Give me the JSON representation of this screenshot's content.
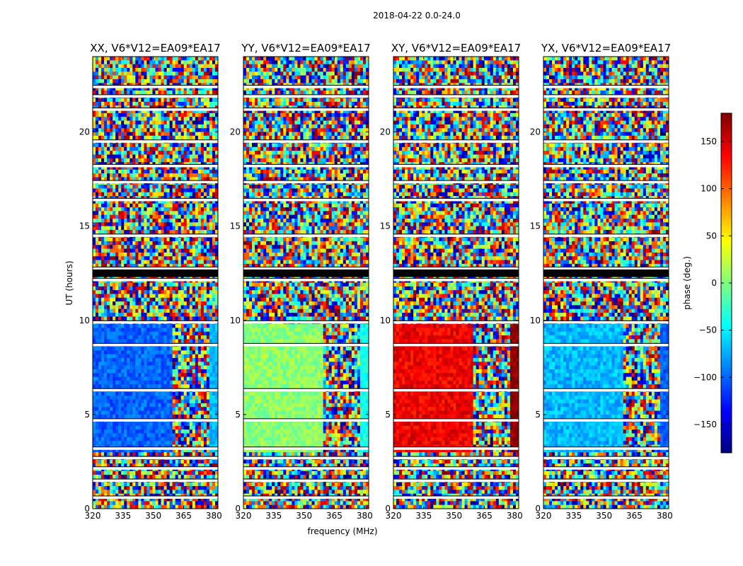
{
  "figure": {
    "suptitle": "2018-04-22 0.0-24.0",
    "xlabel": "frequency (MHz)",
    "ylabel": "UT (hours)"
  },
  "chart_data": {
    "type": "heatmap",
    "xlim": [
      320,
      382
    ],
    "ylim": [
      0,
      24
    ],
    "xticks": [
      320,
      335,
      350,
      365,
      380
    ],
    "yticks": [
      0,
      5,
      10,
      15,
      20
    ],
    "panels": [
      {
        "title": "XX, V6*V12=EA09*EA17",
        "phase_deg": -100,
        "phase_alt_deg": -70
      },
      {
        "title": "YY, V6*V12=EA09*EA17",
        "phase_deg": 5,
        "phase_alt_deg": -40
      },
      {
        "title": "XY, V6*V12=EA09*EA17",
        "phase_deg": 140,
        "phase_alt_deg": 175
      },
      {
        "title": "YX, V6*V12=EA09*EA17",
        "phase_deg": -70,
        "phase_alt_deg": -100
      }
    ],
    "colorbar": {
      "label": "phase (deg.)",
      "range": [
        -180,
        180
      ],
      "ticks": [
        -150,
        -100,
        -50,
        0,
        50,
        100,
        150
      ],
      "colormap": "jet"
    },
    "blank_rows_hours": [
      0.6,
      1.5,
      2.15,
      2.7,
      3.2,
      4.7,
      6.3,
      8.7,
      9.9,
      12.15,
      12.75,
      14.5,
      16.4,
      17.35,
      18.2,
      19.5,
      21.2,
      21.9,
      22.4
    ]
  }
}
